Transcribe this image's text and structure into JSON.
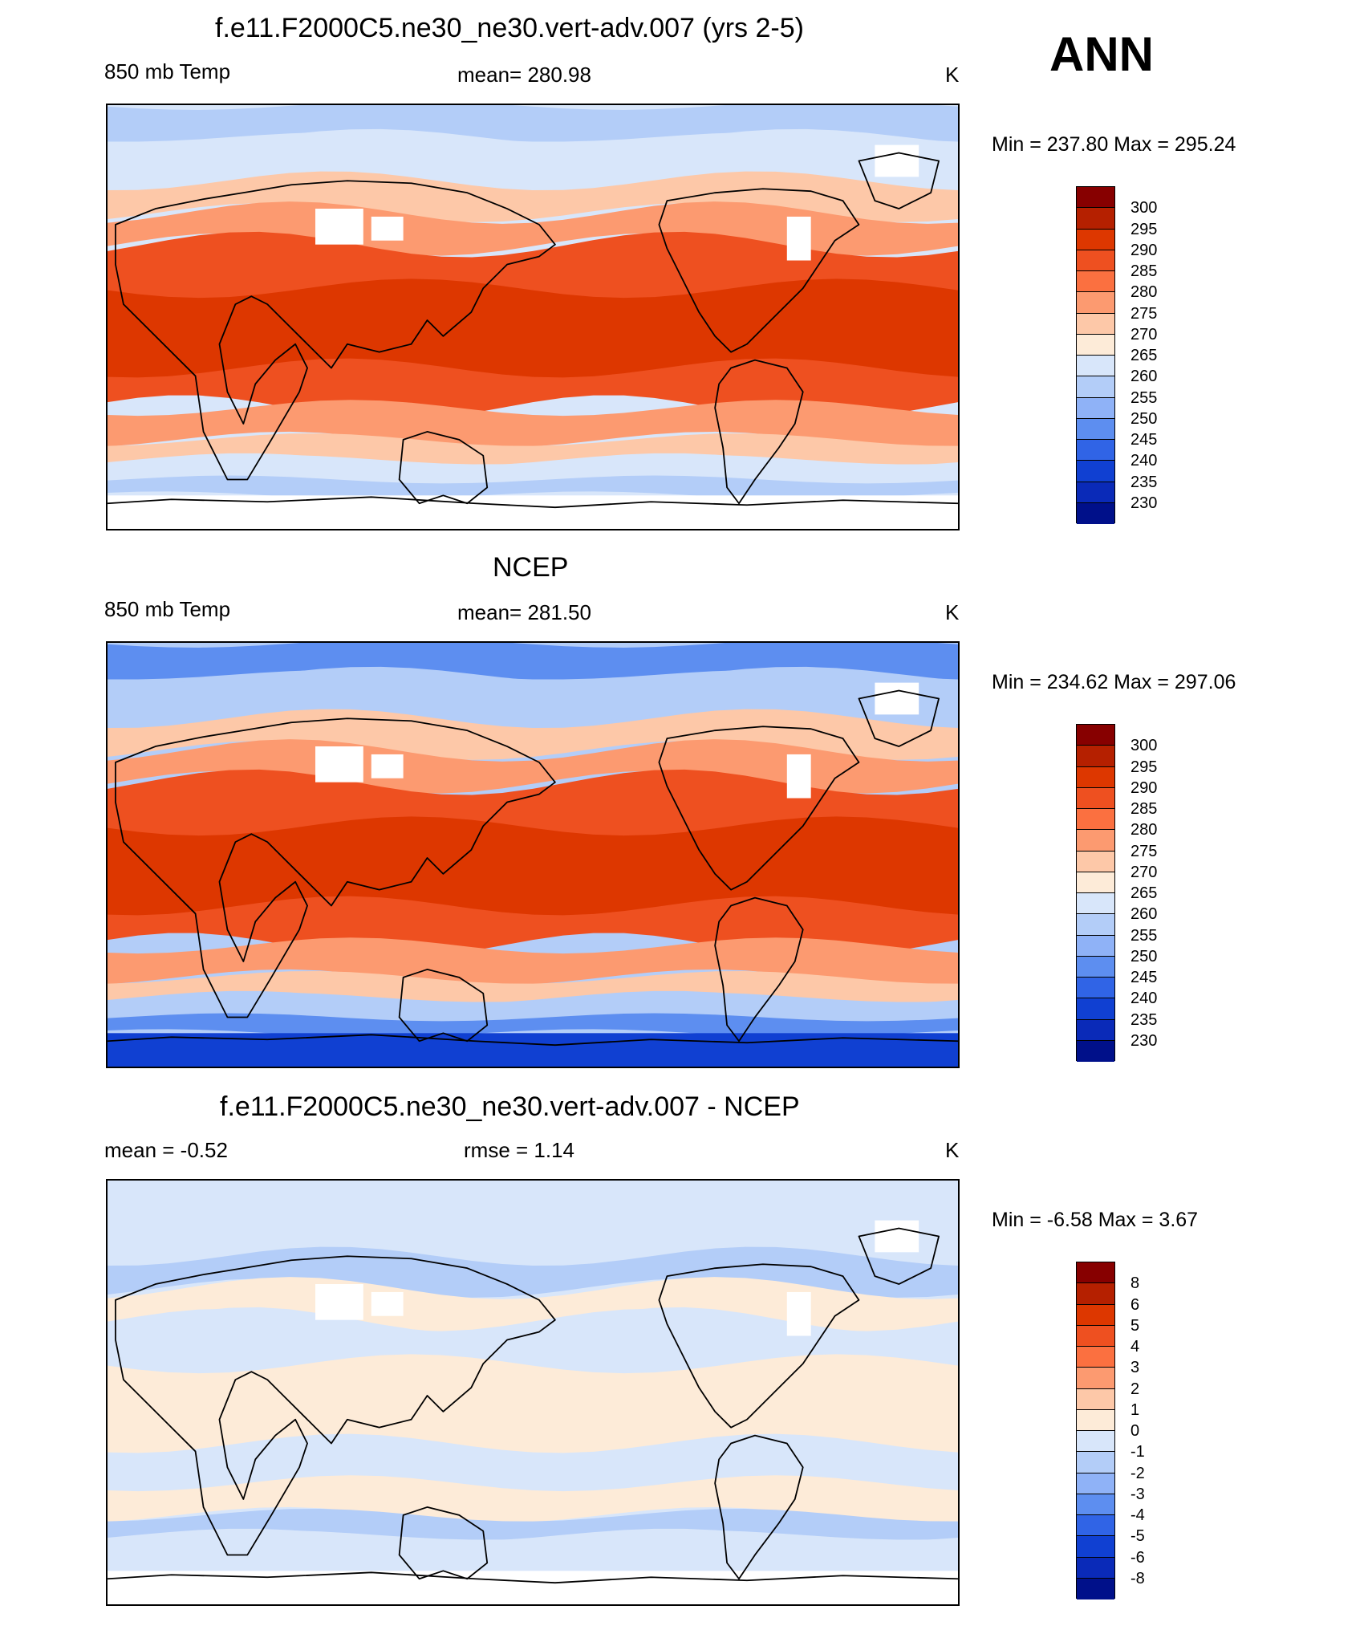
{
  "season": "ANN",
  "panels": [
    {
      "title": "f.e11.F2000C5.ne30_ne30.vert-adv.007 (yrs 2-5)",
      "left_label": "850 mb Temp",
      "center_label": "mean= 280.98",
      "units": "K",
      "minmax": "Min = 237.80 Max = 295.24",
      "colorbar": {
        "labels": [
          "300",
          "295",
          "290",
          "285",
          "280",
          "275",
          "270",
          "265",
          "260",
          "255",
          "250",
          "245",
          "240",
          "235",
          "230"
        ],
        "colors": [
          "#870000",
          "#b52000",
          "#dd3700",
          "#ee5020",
          "#fb7040",
          "#fc9a70",
          "#fdc8a8",
          "#fdebd8",
          "#d8e6fa",
          "#b3cdf8",
          "#8fb2f7",
          "#5d8ef0",
          "#3064e6",
          "#1040d2",
          "#0a2ab8",
          "#00108a"
        ]
      },
      "map_fields": {
        "polar_cap": "#ffffff",
        "polar_ring": "#b3cdf8",
        "mid_band": "#d8e6fa",
        "cool_band": "#fdc8a8",
        "warm_band": "#fc9a70",
        "tropics": "#ee5020",
        "hot_core": "#dd3700",
        "missing": "#ffffff"
      }
    },
    {
      "title": "NCEP",
      "left_label": "850 mb Temp",
      "center_label": "mean= 281.50",
      "units": "K",
      "minmax": "Min = 234.62 Max = 297.06",
      "colorbar": {
        "labels": [
          "300",
          "295",
          "290",
          "285",
          "280",
          "275",
          "270",
          "265",
          "260",
          "255",
          "250",
          "245",
          "240",
          "235",
          "230"
        ],
        "colors": [
          "#870000",
          "#b52000",
          "#dd3700",
          "#ee5020",
          "#fb7040",
          "#fc9a70",
          "#fdc8a8",
          "#fdebd8",
          "#d8e6fa",
          "#b3cdf8",
          "#8fb2f7",
          "#5d8ef0",
          "#3064e6",
          "#1040d2",
          "#0a2ab8",
          "#00108a"
        ]
      },
      "map_fields": {
        "polar_cap": "#1040d2",
        "polar_ring": "#5d8ef0",
        "mid_band": "#b3cdf8",
        "cool_band": "#fdc8a8",
        "warm_band": "#fc9a70",
        "tropics": "#ee5020",
        "hot_core": "#dd3700",
        "missing": "#ffffff"
      }
    },
    {
      "title": "f.e11.F2000C5.ne30_ne30.vert-adv.007 - NCEP",
      "left_label": "mean =  -0.52",
      "center_label": "rmse =   1.14",
      "units": "K",
      "minmax": "Min =  -6.58 Max =   3.67",
      "colorbar": {
        "labels": [
          "8",
          "6",
          "5",
          "4",
          "3",
          "2",
          "1",
          "0",
          "-1",
          "-2",
          "-3",
          "-4",
          "-5",
          "-6",
          "-8"
        ],
        "colors": [
          "#870000",
          "#b52000",
          "#dd3700",
          "#ee5020",
          "#fb7040",
          "#fc9a70",
          "#fdc8a8",
          "#fdebd8",
          "#d8e6fa",
          "#b3cdf8",
          "#8fb2f7",
          "#5d8ef0",
          "#3064e6",
          "#1040d2",
          "#0a2ab8",
          "#00108a"
        ]
      },
      "map_fields": {
        "polar_cap": "#ffffff",
        "polar_ring": "#d8e6fa",
        "mid_band": "#d8e6fa",
        "cool_band": "#b3cdf8",
        "warm_band": "#fdebd8",
        "tropics": "#d8e6fa",
        "hot_core": "#fdebd8",
        "missing": "#ffffff"
      }
    }
  ]
}
